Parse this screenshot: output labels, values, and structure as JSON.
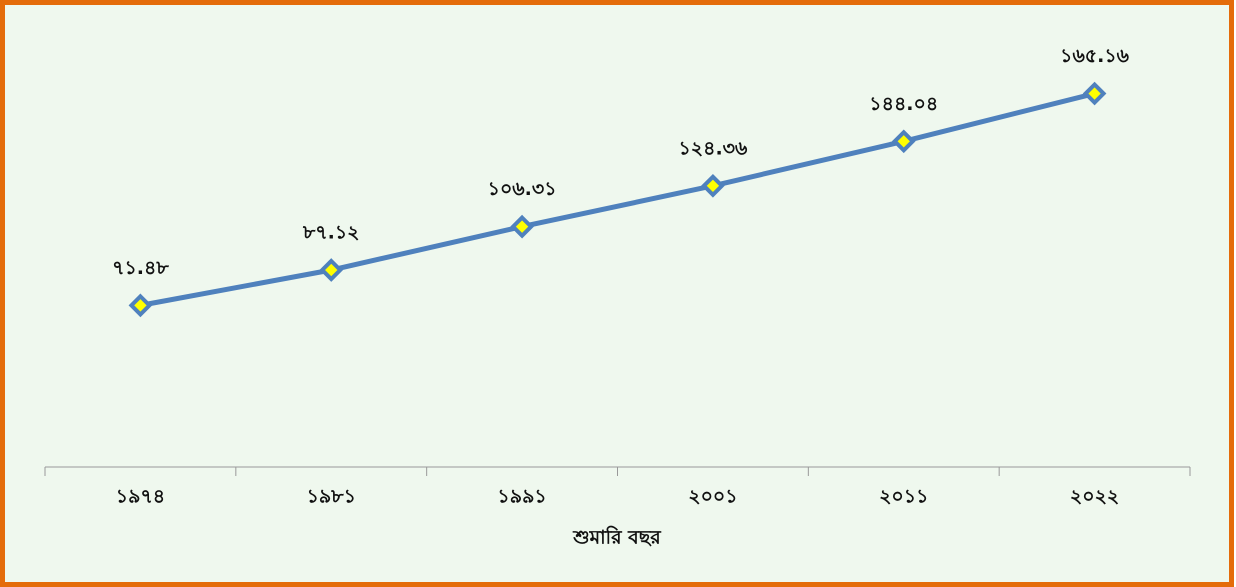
{
  "chart_data": {
    "type": "line",
    "x_label": "শুমারি বছর",
    "categories": [
      "১৯৭৪",
      "১৯৮১",
      "১৯৯১",
      "২০০১",
      "২০১১",
      "২০২২"
    ],
    "values": [
      71.48,
      87.12,
      106.31,
      124.36,
      144.04,
      165.16
    ],
    "value_labels": [
      "৭১.৪৮",
      "৮৭.১২",
      "১০৬.৩১",
      "১২৪.৩৬",
      "১৪৪.০৪",
      "১৬৫.১৬"
    ],
    "color": "#4f81bd",
    "ylim": [
      0,
      180
    ]
  }
}
